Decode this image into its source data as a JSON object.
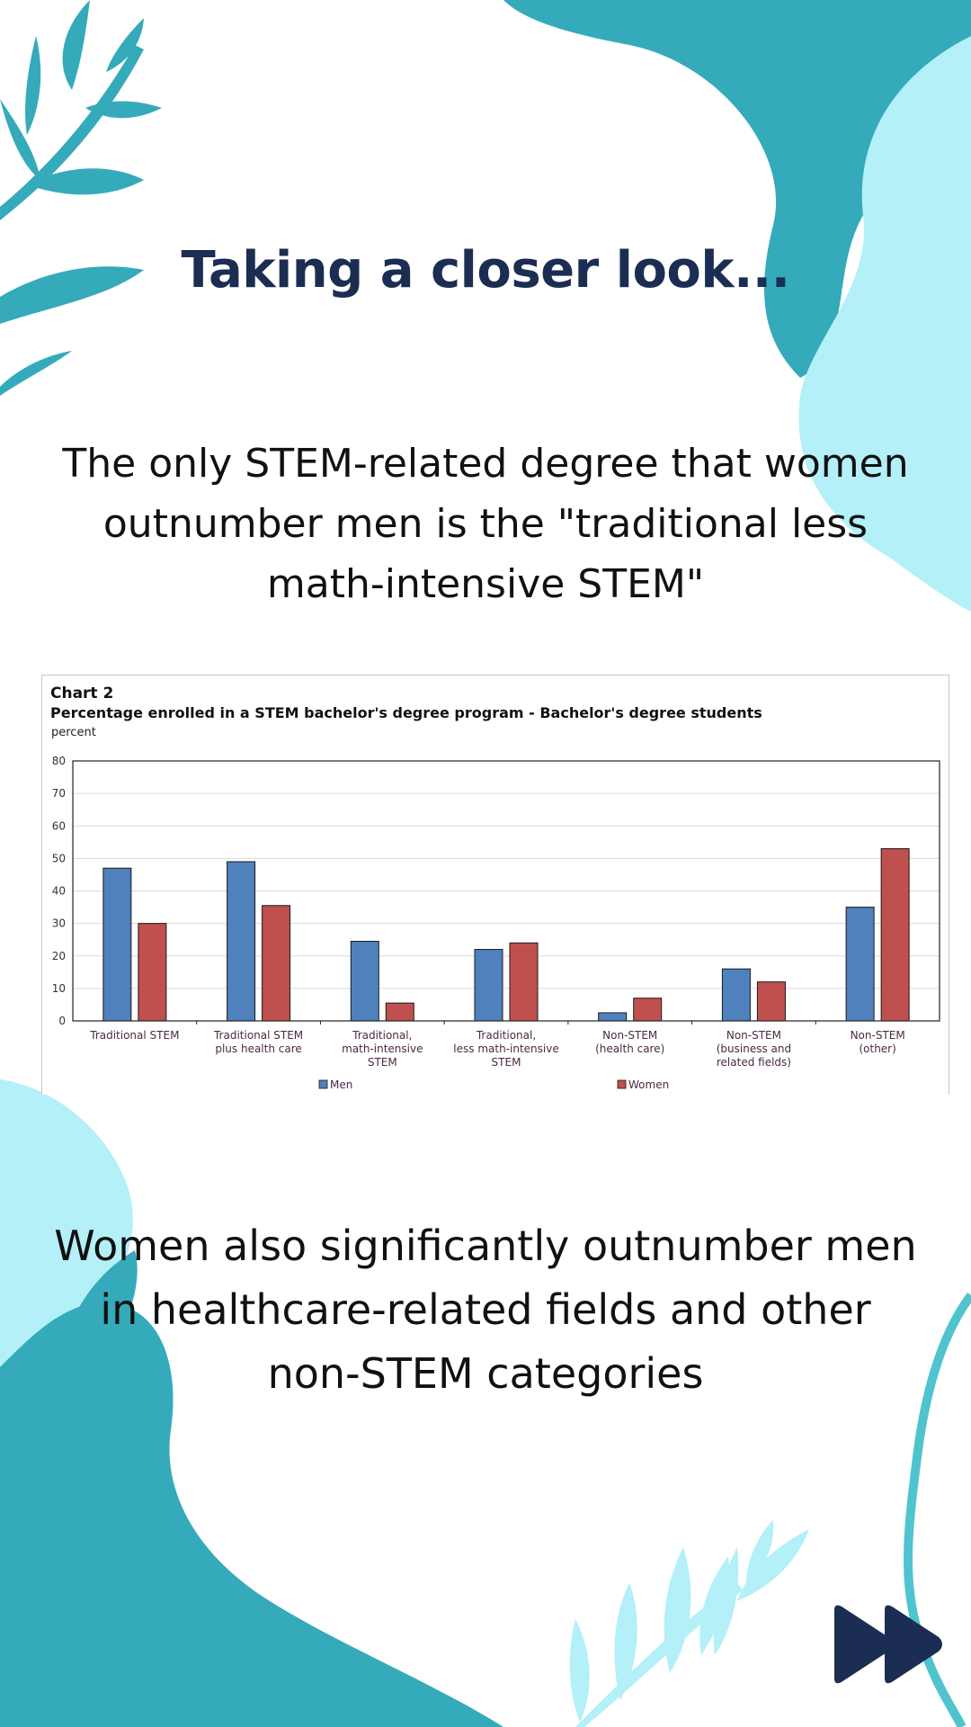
{
  "page": {
    "title": "Taking a closer look...",
    "paragraph_1": "The only STEM-related degree that women outnumber men is the \"traditional less math-intensive STEM\"",
    "paragraph_2": "Women also significantly outnumber men in healthcare-related fields and other non-STEM categories",
    "next_button_icon": "fast-forward-icon"
  },
  "colors": {
    "title": "#1b2d52",
    "teal": "#35aabb",
    "light_teal": "#b3f0f8",
    "men": "#4f81bd",
    "women": "#c0504d"
  },
  "chart_data": {
    "type": "bar",
    "heading": "Chart 2",
    "title": "Percentage enrolled in a STEM bachelor's degree program - Bachelor's degree students",
    "ylabel": "percent",
    "ylim": [
      0,
      80
    ],
    "yticks": [
      "0",
      "10",
      "20",
      "30",
      "40",
      "50",
      "60",
      "70",
      "80"
    ],
    "grid": true,
    "legend_position": "bottom",
    "categories": [
      [
        "Traditional STEM"
      ],
      [
        "Traditional STEM",
        "plus health care"
      ],
      [
        "Traditional,",
        "math-intensive",
        "STEM"
      ],
      [
        "Traditional,",
        "less math-intensive",
        "STEM"
      ],
      [
        "Non-STEM",
        "(health care)"
      ],
      [
        "Non-STEM",
        "(business and",
        "related fields)"
      ],
      [
        "Non-STEM",
        "(other)"
      ]
    ],
    "series": [
      {
        "name": "Men",
        "values": [
          47,
          49,
          24.5,
          22,
          2.5,
          16,
          35
        ]
      },
      {
        "name": "Women",
        "values": [
          30,
          35.5,
          5.5,
          24,
          7,
          12,
          53
        ]
      }
    ]
  }
}
